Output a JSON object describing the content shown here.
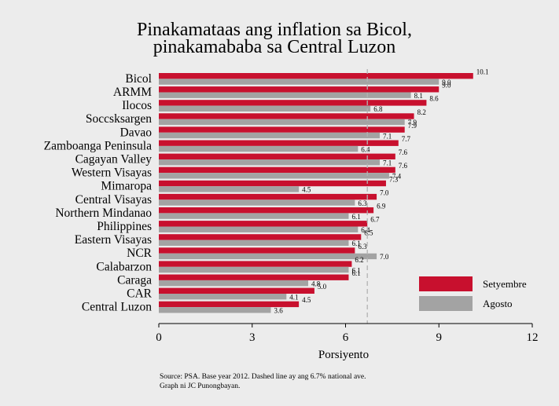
{
  "chart_data": {
    "type": "bar",
    "orientation": "horizontal",
    "title": [
      "Pinakamataas ang inflation sa Bicol,",
      "pinakamababa sa Central Luzon"
    ],
    "categories": [
      "Bicol",
      "ARMM",
      "Ilocos",
      "Soccsksargen",
      "Davao",
      "Zamboanga Peninsula",
      "Cagayan Valley",
      "Western Visayas",
      "Mimaropa",
      "Central Visayas",
      "Northern Mindanao",
      "Philippines",
      "Eastern Visayas",
      "NCR",
      "Calabarzon",
      "Caraga",
      "CAR",
      "Central Luzon"
    ],
    "series": [
      {
        "name": "Setyembre",
        "color": "#c8102e",
        "values": [
          10.1,
          9.0,
          8.6,
          8.2,
          7.9,
          7.7,
          7.6,
          7.6,
          7.3,
          7.0,
          6.9,
          6.7,
          6.5,
          6.3,
          6.2,
          6.1,
          5.0,
          4.5
        ]
      },
      {
        "name": "Agosto",
        "color": "#a3a3a3",
        "values": [
          9.0,
          8.1,
          6.8,
          7.9,
          7.1,
          6.4,
          7.1,
          7.4,
          4.5,
          6.3,
          6.1,
          6.4,
          6.1,
          7.0,
          6.1,
          4.8,
          4.1,
          3.6
        ]
      }
    ],
    "value_labels": {
      "Setyembre": [
        "10.1",
        "9.0",
        "8.6",
        "8.2",
        "7.9",
        "7.7",
        "7.6",
        "7.6",
        "7.3",
        "7.0",
        "6.9",
        "6.7",
        "6.5",
        "6.3",
        "6.2",
        "6.1",
        "5.0",
        "4.5"
      ],
      "Agosto": [
        "9.0",
        "8.1",
        "6.8",
        "7.9",
        "7.1",
        "6.4",
        "7.1",
        "7.4",
        "4.5",
        "6.3",
        "6.1",
        "6.4",
        "6.1",
        "7.0",
        "6.1",
        "4.8",
        "4.1",
        "3.6"
      ]
    },
    "xlabel": "Porsiyento",
    "xlim": [
      0,
      12
    ],
    "xticks": [
      0,
      3,
      6,
      9,
      12
    ],
    "xtick_labels": [
      "0",
      "3",
      "6",
      "9",
      "12"
    ],
    "reference_line": {
      "value": 6.7,
      "style": "dashed"
    },
    "legend_position": "bottom-right",
    "source": [
      "Source: PSA. Base year 2012. Dashed line ay ang 6.7% national ave.",
      "Graph ni JC Punongbayan."
    ]
  }
}
